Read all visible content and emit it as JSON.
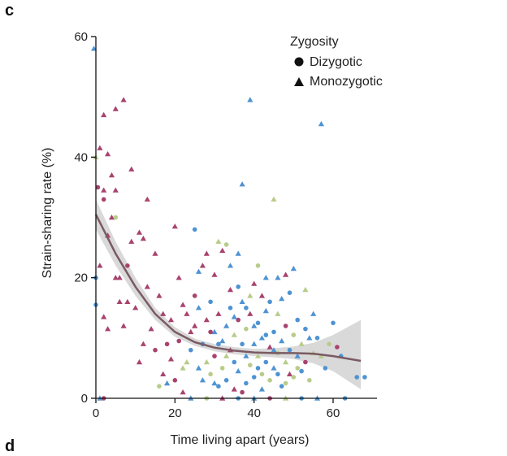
{
  "panel_letter": "c",
  "next_panel_letter": "d",
  "chart_data": {
    "type": "scatter",
    "xlabel": "Time living apart (years)",
    "ylabel": "Strain-sharing rate (%)",
    "xlim": [
      -1,
      70
    ],
    "ylim": [
      0,
      62
    ],
    "xticks": [
      0,
      20,
      40,
      60
    ],
    "yticks": [
      0,
      20,
      40,
      60
    ],
    "legend": {
      "title": "Zygosity",
      "placement": "top-right",
      "entries": [
        {
          "label": "Dizygotic",
          "marker": "circle"
        },
        {
          "label": "Monozygotic",
          "marker": "triangle"
        }
      ]
    },
    "colors": {
      "magenta": "#a8436e",
      "blue": "#4e93d2",
      "green": "#b8cc8a",
      "trend": "#7a5a63",
      "band": "#cccccc"
    },
    "trend": {
      "x": [
        0,
        5,
        10,
        15,
        20,
        25,
        30,
        35,
        40,
        45,
        50,
        55,
        60,
        67
      ],
      "y": [
        30.5,
        24,
        18.5,
        14,
        11,
        9.3,
        8.4,
        7.9,
        7.6,
        7.5,
        7.5,
        7.4,
        7.0,
        6.2
      ],
      "lower": [
        28,
        22,
        17,
        13,
        10.2,
        8.7,
        7.8,
        7.3,
        7.0,
        6.8,
        6.5,
        5.8,
        4.5,
        1.5
      ],
      "upper": [
        33,
        26,
        20,
        15,
        11.8,
        9.9,
        9.0,
        8.5,
        8.2,
        8.3,
        8.6,
        9.2,
        10.5,
        13
      ]
    },
    "points": [
      {
        "x": -0.5,
        "y": 58,
        "z": "mono",
        "c": "blue"
      },
      {
        "x": 0,
        "y": 40,
        "z": "mono",
        "c": "green"
      },
      {
        "x": 1,
        "y": 41.5,
        "z": "mono",
        "c": "magenta"
      },
      {
        "x": 2,
        "y": 47,
        "z": "mono",
        "c": "magenta"
      },
      {
        "x": 3,
        "y": 40.5,
        "z": "mono",
        "c": "magenta"
      },
      {
        "x": 5,
        "y": 48,
        "z": "mono",
        "c": "magenta"
      },
      {
        "x": 7,
        "y": 49.5,
        "z": "mono",
        "c": "magenta"
      },
      {
        "x": 0.5,
        "y": 35,
        "z": "dizy",
        "c": "magenta"
      },
      {
        "x": 2,
        "y": 34.5,
        "z": "mono",
        "c": "magenta"
      },
      {
        "x": 2,
        "y": 33,
        "z": "dizy",
        "c": "magenta"
      },
      {
        "x": 4,
        "y": 37,
        "z": "mono",
        "c": "magenta"
      },
      {
        "x": 5,
        "y": 34.5,
        "z": "mono",
        "c": "magenta"
      },
      {
        "x": 9,
        "y": 38,
        "z": "mono",
        "c": "magenta"
      },
      {
        "x": 13,
        "y": 33,
        "z": "mono",
        "c": "magenta"
      },
      {
        "x": 0,
        "y": 20,
        "z": "dizy",
        "c": "blue"
      },
      {
        "x": 0,
        "y": 15.5,
        "z": "dizy",
        "c": "blue"
      },
      {
        "x": 1,
        "y": 22,
        "z": "mono",
        "c": "magenta"
      },
      {
        "x": 2,
        "y": 13.5,
        "z": "mono",
        "c": "magenta"
      },
      {
        "x": 3,
        "y": 11.5,
        "z": "mono",
        "c": "magenta"
      },
      {
        "x": 3,
        "y": 27,
        "z": "mono",
        "c": "magenta"
      },
      {
        "x": 4,
        "y": 30,
        "z": "mono",
        "c": "magenta"
      },
      {
        "x": 5,
        "y": 30,
        "z": "dizy",
        "c": "green"
      },
      {
        "x": 5,
        "y": 20,
        "z": "mono",
        "c": "magenta"
      },
      {
        "x": 6,
        "y": 20,
        "z": "mono",
        "c": "magenta"
      },
      {
        "x": 7,
        "y": 12,
        "z": "mono",
        "c": "magenta"
      },
      {
        "x": 8,
        "y": 16,
        "z": "mono",
        "c": "magenta"
      },
      {
        "x": 9,
        "y": 26,
        "z": "mono",
        "c": "magenta"
      },
      {
        "x": 10,
        "y": 15,
        "z": "mono",
        "c": "magenta"
      },
      {
        "x": 11,
        "y": 27.5,
        "z": "mono",
        "c": "magenta"
      },
      {
        "x": 12,
        "y": 26.5,
        "z": "mono",
        "c": "magenta"
      },
      {
        "x": 12,
        "y": 9,
        "z": "mono",
        "c": "magenta"
      },
      {
        "x": 13,
        "y": 18.5,
        "z": "mono",
        "c": "magenta"
      },
      {
        "x": 14,
        "y": 11.5,
        "z": "mono",
        "c": "magenta"
      },
      {
        "x": 15,
        "y": 24,
        "z": "mono",
        "c": "magenta"
      },
      {
        "x": 16,
        "y": 17,
        "z": "mono",
        "c": "magenta"
      },
      {
        "x": 17,
        "y": 14,
        "z": "mono",
        "c": "magenta"
      },
      {
        "x": 18,
        "y": 9,
        "z": "dizy",
        "c": "magenta"
      },
      {
        "x": 19,
        "y": 6.5,
        "z": "mono",
        "c": "magenta"
      },
      {
        "x": 20,
        "y": 28.5,
        "z": "mono",
        "c": "magenta"
      },
      {
        "x": 21,
        "y": 20,
        "z": "mono",
        "c": "magenta"
      },
      {
        "x": 22,
        "y": 15.5,
        "z": "mono",
        "c": "magenta"
      },
      {
        "x": 22,
        "y": 5,
        "z": "mono",
        "c": "green"
      },
      {
        "x": 23,
        "y": 14,
        "z": "mono",
        "c": "magenta"
      },
      {
        "x": 24,
        "y": 11,
        "z": "mono",
        "c": "magenta"
      },
      {
        "x": 25,
        "y": 17,
        "z": "dizy",
        "c": "magenta"
      },
      {
        "x": 25,
        "y": 28,
        "z": "dizy",
        "c": "blue"
      },
      {
        "x": 26,
        "y": 21,
        "z": "mono",
        "c": "blue"
      },
      {
        "x": 27,
        "y": 22,
        "z": "mono",
        "c": "magenta"
      },
      {
        "x": 28,
        "y": 24,
        "z": "mono",
        "c": "magenta"
      },
      {
        "x": 30,
        "y": 20.5,
        "z": "mono",
        "c": "magenta"
      },
      {
        "x": 31,
        "y": 26,
        "z": "mono",
        "c": "green"
      },
      {
        "x": 32,
        "y": 24.5,
        "z": "mono",
        "c": "magenta"
      },
      {
        "x": 33,
        "y": 25.5,
        "z": "dizy",
        "c": "green"
      },
      {
        "x": 34,
        "y": 22,
        "z": "mono",
        "c": "blue"
      },
      {
        "x": 36,
        "y": 24,
        "z": "mono",
        "c": "blue"
      },
      {
        "x": 37,
        "y": 35.5,
        "z": "mono",
        "c": "blue"
      },
      {
        "x": 39,
        "y": 49.5,
        "z": "mono",
        "c": "blue"
      },
      {
        "x": 40,
        "y": 19,
        "z": "mono",
        "c": "magenta"
      },
      {
        "x": 41,
        "y": 22,
        "z": "dizy",
        "c": "green"
      },
      {
        "x": 42,
        "y": 17,
        "z": "mono",
        "c": "magenta"
      },
      {
        "x": 43,
        "y": 20,
        "z": "mono",
        "c": "blue"
      },
      {
        "x": 45,
        "y": 33,
        "z": "mono",
        "c": "green"
      },
      {
        "x": 46,
        "y": 20,
        "z": "mono",
        "c": "blue"
      },
      {
        "x": 48,
        "y": 20.5,
        "z": "mono",
        "c": "magenta"
      },
      {
        "x": 49,
        "y": 17.5,
        "z": "dizy",
        "c": "blue"
      },
      {
        "x": 50,
        "y": 21.5,
        "z": "mono",
        "c": "blue"
      },
      {
        "x": 53,
        "y": 18,
        "z": "mono",
        "c": "green"
      },
      {
        "x": 55,
        "y": 14,
        "z": "mono",
        "c": "blue"
      },
      {
        "x": 57,
        "y": 45.5,
        "z": "mono",
        "c": "blue"
      },
      {
        "x": 60,
        "y": 12.5,
        "z": "dizy",
        "c": "blue"
      },
      {
        "x": 61,
        "y": 8.5,
        "z": "dizy",
        "c": "magenta"
      },
      {
        "x": 62,
        "y": 7,
        "z": "dizy",
        "c": "blue"
      },
      {
        "x": 66,
        "y": 3.5,
        "z": "dizy",
        "c": "blue"
      },
      {
        "x": 68,
        "y": 3.5,
        "z": "dizy",
        "c": "blue"
      },
      {
        "x": 59,
        "y": 9,
        "z": "dizy",
        "c": "green"
      },
      {
        "x": 57,
        "y": 7,
        "z": "mono",
        "c": "green"
      },
      {
        "x": 56,
        "y": 10,
        "z": "dizy",
        "c": "blue"
      },
      {
        "x": 1,
        "y": 0,
        "z": "mono",
        "c": "blue"
      },
      {
        "x": 2,
        "y": 0,
        "z": "dizy",
        "c": "magenta"
      },
      {
        "x": 24,
        "y": 0,
        "z": "mono",
        "c": "blue"
      },
      {
        "x": 28,
        "y": 0,
        "z": "dizy",
        "c": "green"
      },
      {
        "x": 32,
        "y": 0,
        "z": "mono",
        "c": "magenta"
      },
      {
        "x": 36,
        "y": 0,
        "z": "dizy",
        "c": "blue"
      },
      {
        "x": 40,
        "y": 0,
        "z": "mono",
        "c": "blue"
      },
      {
        "x": 44,
        "y": 0,
        "z": "dizy",
        "c": "magenta"
      },
      {
        "x": 48,
        "y": 0,
        "z": "mono",
        "c": "green"
      },
      {
        "x": 52,
        "y": 0,
        "z": "dizy",
        "c": "blue"
      },
      {
        "x": 56,
        "y": 0,
        "z": "mono",
        "c": "blue"
      },
      {
        "x": 63,
        "y": 0,
        "z": "dizy",
        "c": "blue"
      },
      {
        "x": 18,
        "y": 2.5,
        "z": "mono",
        "c": "blue"
      },
      {
        "x": 20,
        "y": 3,
        "z": "dizy",
        "c": "magenta"
      },
      {
        "x": 22,
        "y": 1,
        "z": "mono",
        "c": "magenta"
      },
      {
        "x": 16,
        "y": 2,
        "z": "dizy",
        "c": "green"
      },
      {
        "x": 26,
        "y": 5,
        "z": "mono",
        "c": "blue"
      },
      {
        "x": 27,
        "y": 9,
        "z": "dizy",
        "c": "blue"
      },
      {
        "x": 28,
        "y": 13,
        "z": "mono",
        "c": "magenta"
      },
      {
        "x": 29,
        "y": 4,
        "z": "dizy",
        "c": "green"
      },
      {
        "x": 30,
        "y": 11,
        "z": "mono",
        "c": "blue"
      },
      {
        "x": 30,
        "y": 7,
        "z": "dizy",
        "c": "magenta"
      },
      {
        "x": 31,
        "y": 14,
        "z": "mono",
        "c": "magenta"
      },
      {
        "x": 31,
        "y": 2,
        "z": "dizy",
        "c": "blue"
      },
      {
        "x": 32,
        "y": 9.5,
        "z": "mono",
        "c": "blue"
      },
      {
        "x": 32,
        "y": 5,
        "z": "dizy",
        "c": "green"
      },
      {
        "x": 33,
        "y": 12,
        "z": "mono",
        "c": "blue"
      },
      {
        "x": 33,
        "y": 3,
        "z": "dizy",
        "c": "blue"
      },
      {
        "x": 34,
        "y": 8,
        "z": "mono",
        "c": "magenta"
      },
      {
        "x": 34,
        "y": 15,
        "z": "dizy",
        "c": "blue"
      },
      {
        "x": 35,
        "y": 10.5,
        "z": "mono",
        "c": "green"
      },
      {
        "x": 35,
        "y": 6,
        "z": "dizy",
        "c": "blue"
      },
      {
        "x": 35,
        "y": 1.5,
        "z": "mono",
        "c": "magenta"
      },
      {
        "x": 36,
        "y": 13,
        "z": "dizy",
        "c": "magenta"
      },
      {
        "x": 36,
        "y": 4.5,
        "z": "mono",
        "c": "blue"
      },
      {
        "x": 37,
        "y": 9,
        "z": "dizy",
        "c": "blue"
      },
      {
        "x": 37,
        "y": 16,
        "z": "mono",
        "c": "blue"
      },
      {
        "x": 38,
        "y": 7,
        "z": "mono",
        "c": "blue"
      },
      {
        "x": 38,
        "y": 11.5,
        "z": "dizy",
        "c": "green"
      },
      {
        "x": 38,
        "y": 2.5,
        "z": "dizy",
        "c": "blue"
      },
      {
        "x": 39,
        "y": 14,
        "z": "mono",
        "c": "magenta"
      },
      {
        "x": 39,
        "y": 5.5,
        "z": "dizy",
        "c": "green"
      },
      {
        "x": 40,
        "y": 9,
        "z": "mono",
        "c": "blue"
      },
      {
        "x": 40,
        "y": 3.5,
        "z": "dizy",
        "c": "blue"
      },
      {
        "x": 41,
        "y": 12.5,
        "z": "dizy",
        "c": "blue"
      },
      {
        "x": 41,
        "y": 7,
        "z": "mono",
        "c": "green"
      },
      {
        "x": 42,
        "y": 10,
        "z": "mono",
        "c": "blue"
      },
      {
        "x": 42,
        "y": 4,
        "z": "dizy",
        "c": "green"
      },
      {
        "x": 43,
        "y": 6,
        "z": "dizy",
        "c": "blue"
      },
      {
        "x": 43,
        "y": 14.5,
        "z": "mono",
        "c": "blue"
      },
      {
        "x": 44,
        "y": 8.5,
        "z": "mono",
        "c": "magenta"
      },
      {
        "x": 44,
        "y": 3,
        "z": "dizy",
        "c": "green"
      },
      {
        "x": 45,
        "y": 11,
        "z": "dizy",
        "c": "blue"
      },
      {
        "x": 45,
        "y": 5,
        "z": "mono",
        "c": "blue"
      },
      {
        "x": 46,
        "y": 7.5,
        "z": "dizy",
        "c": "green"
      },
      {
        "x": 46,
        "y": 14,
        "z": "mono",
        "c": "green"
      },
      {
        "x": 47,
        "y": 9.5,
        "z": "mono",
        "c": "blue"
      },
      {
        "x": 47,
        "y": 2,
        "z": "dizy",
        "c": "blue"
      },
      {
        "x": 48,
        "y": 12,
        "z": "dizy",
        "c": "magenta"
      },
      {
        "x": 48,
        "y": 6,
        "z": "mono",
        "c": "green"
      },
      {
        "x": 49,
        "y": 8,
        "z": "dizy",
        "c": "blue"
      },
      {
        "x": 49,
        "y": 4,
        "z": "mono",
        "c": "magenta"
      },
      {
        "x": 50,
        "y": 10.5,
        "z": "dizy",
        "c": "green"
      },
      {
        "x": 50,
        "y": 3.5,
        "z": "dizy",
        "c": "green"
      },
      {
        "x": 51,
        "y": 7,
        "z": "mono",
        "c": "blue"
      },
      {
        "x": 51,
        "y": 13,
        "z": "dizy",
        "c": "blue"
      },
      {
        "x": 52,
        "y": 9,
        "z": "mono",
        "c": "green"
      },
      {
        "x": 52,
        "y": 4.5,
        "z": "dizy",
        "c": "blue"
      },
      {
        "x": 53,
        "y": 6,
        "z": "dizy",
        "c": "magenta"
      },
      {
        "x": 54,
        "y": 10,
        "z": "mono",
        "c": "blue"
      },
      {
        "x": 54,
        "y": 3,
        "z": "dizy",
        "c": "green"
      },
      {
        "x": 29,
        "y": 16,
        "z": "dizy",
        "c": "blue"
      },
      {
        "x": 28,
        "y": 6,
        "z": "mono",
        "c": "green"
      },
      {
        "x": 27,
        "y": 3,
        "z": "mono",
        "c": "blue"
      },
      {
        "x": 25,
        "y": 12,
        "z": "mono",
        "c": "magenta"
      },
      {
        "x": 24,
        "y": 8,
        "z": "dizy",
        "c": "blue"
      },
      {
        "x": 23,
        "y": 6,
        "z": "mono",
        "c": "green"
      },
      {
        "x": 21,
        "y": 9.5,
        "z": "dizy",
        "c": "magenta"
      },
      {
        "x": 26,
        "y": 15,
        "z": "mono",
        "c": "blue"
      },
      {
        "x": 34,
        "y": 18,
        "z": "mono",
        "c": "magenta"
      },
      {
        "x": 36,
        "y": 18.5,
        "z": "dizy",
        "c": "blue"
      },
      {
        "x": 39,
        "y": 17,
        "z": "mono",
        "c": "green"
      },
      {
        "x": 44,
        "y": 16,
        "z": "dizy",
        "c": "blue"
      },
      {
        "x": 47,
        "y": 16.5,
        "z": "mono",
        "c": "blue"
      },
      {
        "x": 42,
        "y": 1.5,
        "z": "mono",
        "c": "blue"
      },
      {
        "x": 37,
        "y": 1,
        "z": "dizy",
        "c": "magenta"
      },
      {
        "x": 33,
        "y": 7,
        "z": "mono",
        "c": "green"
      },
      {
        "x": 31,
        "y": 9,
        "z": "dizy",
        "c": "blue"
      },
      {
        "x": 29,
        "y": 11,
        "z": "dizy",
        "c": "magenta"
      },
      {
        "x": 40,
        "y": 12,
        "z": "mono",
        "c": "blue"
      },
      {
        "x": 43,
        "y": 10.5,
        "z": "dizy",
        "c": "blue"
      },
      {
        "x": 46,
        "y": 4,
        "z": "dizy",
        "c": "blue"
      },
      {
        "x": 35,
        "y": 13.5,
        "z": "mono",
        "c": "blue"
      },
      {
        "x": 38,
        "y": 15,
        "z": "dizy",
        "c": "blue"
      },
      {
        "x": 30,
        "y": 2.5,
        "z": "mono",
        "c": "blue"
      },
      {
        "x": 41,
        "y": 5,
        "z": "dizy",
        "c": "blue"
      },
      {
        "x": 45,
        "y": 8,
        "z": "mono",
        "c": "blue"
      },
      {
        "x": 48,
        "y": 2.5,
        "z": "dizy",
        "c": "green"
      },
      {
        "x": 51,
        "y": 5,
        "z": "dizy",
        "c": "green"
      },
      {
        "x": 53,
        "y": 11.5,
        "z": "dizy",
        "c": "blue"
      },
      {
        "x": 55,
        "y": 7.5,
        "z": "mono",
        "c": "green"
      },
      {
        "x": 58,
        "y": 5,
        "z": "dizy",
        "c": "blue"
      },
      {
        "x": 19,
        "y": 13,
        "z": "mono",
        "c": "magenta"
      },
      {
        "x": 15,
        "y": 8,
        "z": "dizy",
        "c": "magenta"
      },
      {
        "x": 17,
        "y": 4,
        "z": "mono",
        "c": "magenta"
      },
      {
        "x": 11,
        "y": 6,
        "z": "mono",
        "c": "magenta"
      },
      {
        "x": 8,
        "y": 22,
        "z": "dizy",
        "c": "magenta"
      },
      {
        "x": 6,
        "y": 16,
        "z": "mono",
        "c": "magenta"
      }
    ]
  }
}
